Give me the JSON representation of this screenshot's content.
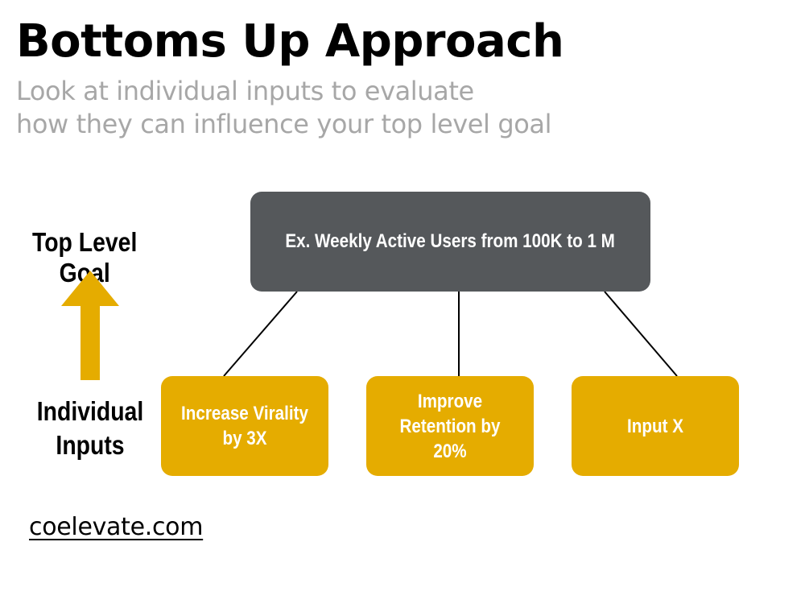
{
  "slide": {
    "title": "Bottoms Up Approach",
    "subtitle_lines": [
      "Look at individual inputs to evaluate",
      "how they can influence your top level goal"
    ]
  },
  "labels": {
    "top_level_goal": "Top Level Goal",
    "individual_inputs_lines": [
      "Individual",
      "Inputs"
    ]
  },
  "diagram": {
    "goal": "Ex. Weekly Active Users from 100K to 1 M",
    "inputs": [
      "Increase Virality by 3X",
      "Improve Retention by 20%",
      "Input X"
    ]
  },
  "footer": {
    "link_text": "coelevate.com"
  },
  "colors": {
    "goal_box": "#55585b",
    "input_box": "#e5ac00",
    "arrow": "#e5ac00",
    "subtitle_text": "#a7a7a7",
    "connector": "#000000"
  },
  "icons": {
    "arrow": "up-arrow-icon"
  }
}
